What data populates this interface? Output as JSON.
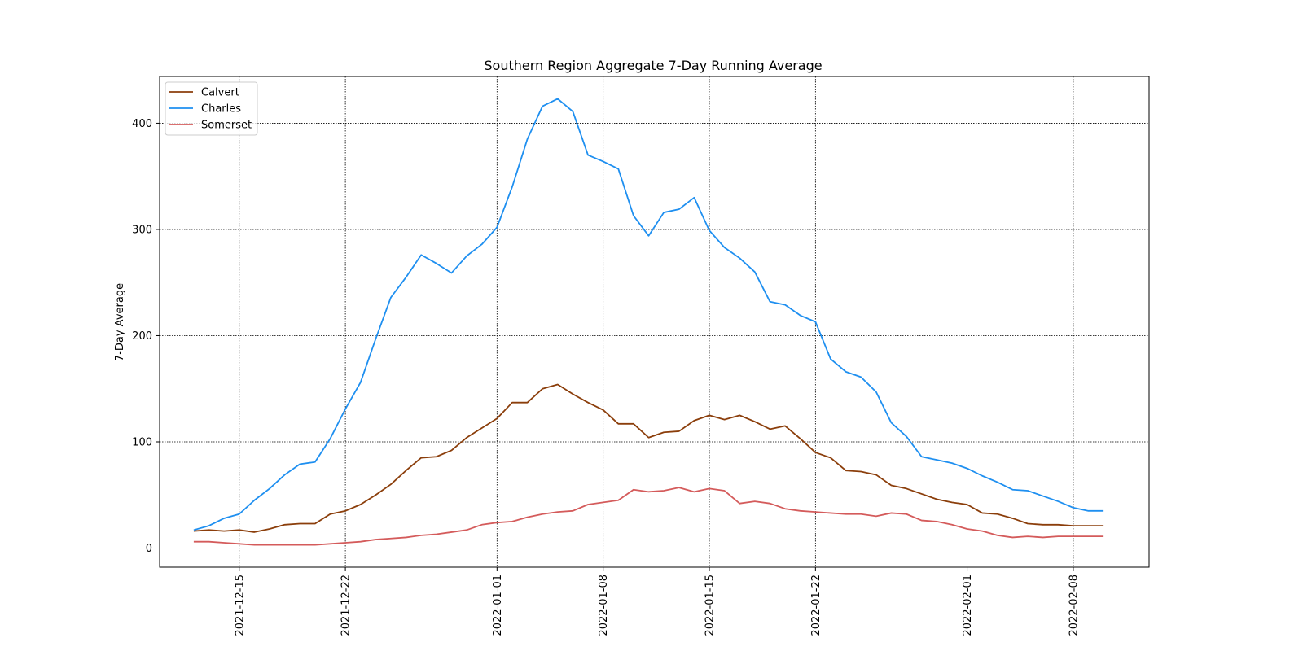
{
  "chart_data": {
    "type": "line",
    "title": "Southern Region Aggregate 7-Day Running Average",
    "xlabel": "",
    "ylabel": "7-Day Average",
    "x_start": "2021-12-12",
    "x": [
      "2021-12-12",
      "2021-12-13",
      "2021-12-14",
      "2021-12-15",
      "2021-12-16",
      "2021-12-17",
      "2021-12-18",
      "2021-12-19",
      "2021-12-20",
      "2021-12-21",
      "2021-12-22",
      "2021-12-23",
      "2021-12-24",
      "2021-12-25",
      "2021-12-26",
      "2021-12-27",
      "2021-12-28",
      "2021-12-29",
      "2021-12-30",
      "2021-12-31",
      "2022-01-01",
      "2022-01-02",
      "2022-01-03",
      "2022-01-04",
      "2022-01-05",
      "2022-01-06",
      "2022-01-07",
      "2022-01-08",
      "2022-01-09",
      "2022-01-10",
      "2022-01-11",
      "2022-01-12",
      "2022-01-13",
      "2022-01-14",
      "2022-01-15",
      "2022-01-16",
      "2022-01-17",
      "2022-01-18",
      "2022-01-19",
      "2022-01-20",
      "2022-01-21",
      "2022-01-22",
      "2022-01-23",
      "2022-01-24",
      "2022-01-25",
      "2022-01-26",
      "2022-01-27",
      "2022-01-28",
      "2022-01-29",
      "2022-01-30",
      "2022-01-31",
      "2022-02-01",
      "2022-02-02",
      "2022-02-03",
      "2022-02-04",
      "2022-02-05",
      "2022-02-06",
      "2022-02-07",
      "2022-02-08",
      "2022-02-09",
      "2022-02-10"
    ],
    "x_ticks": [
      "2021-12-15",
      "2021-12-22",
      "2022-01-01",
      "2022-01-08",
      "2022-01-15",
      "2022-01-22",
      "2022-02-01",
      "2022-02-08"
    ],
    "xlim": [
      "2021-12-09T18:00",
      "2022-02-13T00:00"
    ],
    "y_ticks": [
      0,
      100,
      200,
      300,
      400
    ],
    "ylim": [
      -18,
      444
    ],
    "grid": true,
    "legend_position": "upper-left",
    "series": [
      {
        "name": "Calvert",
        "color": "#8B3E0B",
        "values": [
          16,
          17,
          16,
          17,
          15,
          18,
          22,
          23,
          23,
          32,
          35,
          41,
          50,
          60,
          73,
          85,
          86,
          92,
          104,
          113,
          122,
          137,
          137,
          150,
          154,
          145,
          137,
          130,
          117,
          117,
          104,
          109,
          110,
          120,
          125,
          121,
          125,
          119,
          112,
          115,
          103,
          90,
          85,
          73,
          72,
          69,
          59,
          56,
          51,
          46,
          43,
          41,
          33,
          32,
          28,
          23,
          22,
          22,
          21,
          21,
          21
        ]
      },
      {
        "name": "Charles",
        "color": "#1E8FF0",
        "values": [
          17,
          21,
          28,
          32,
          45,
          56,
          69,
          79,
          81,
          103,
          131,
          156,
          197,
          236,
          255,
          276,
          268,
          259,
          275,
          286,
          302,
          340,
          385,
          416,
          423,
          411,
          370,
          364,
          357,
          313,
          294,
          316,
          319,
          330,
          299,
          283,
          273,
          260,
          232,
          229,
          219,
          213,
          178,
          166,
          161,
          147,
          118,
          105,
          86,
          83,
          80,
          75,
          68,
          62,
          55,
          54,
          49,
          44,
          38,
          35,
          35
        ]
      },
      {
        "name": "Somerset",
        "color": "#D45B5B",
        "values": [
          6,
          6,
          5,
          4,
          3,
          3,
          3,
          3,
          3,
          4,
          5,
          6,
          8,
          9,
          10,
          12,
          13,
          15,
          17,
          22,
          24,
          25,
          29,
          32,
          34,
          35,
          41,
          43,
          45,
          55,
          53,
          54,
          57,
          53,
          56,
          54,
          42,
          44,
          42,
          37,
          35,
          34,
          33,
          32,
          32,
          30,
          33,
          32,
          26,
          25,
          22,
          18,
          16,
          12,
          10,
          11,
          10,
          11,
          11,
          11,
          11
        ]
      }
    ]
  }
}
